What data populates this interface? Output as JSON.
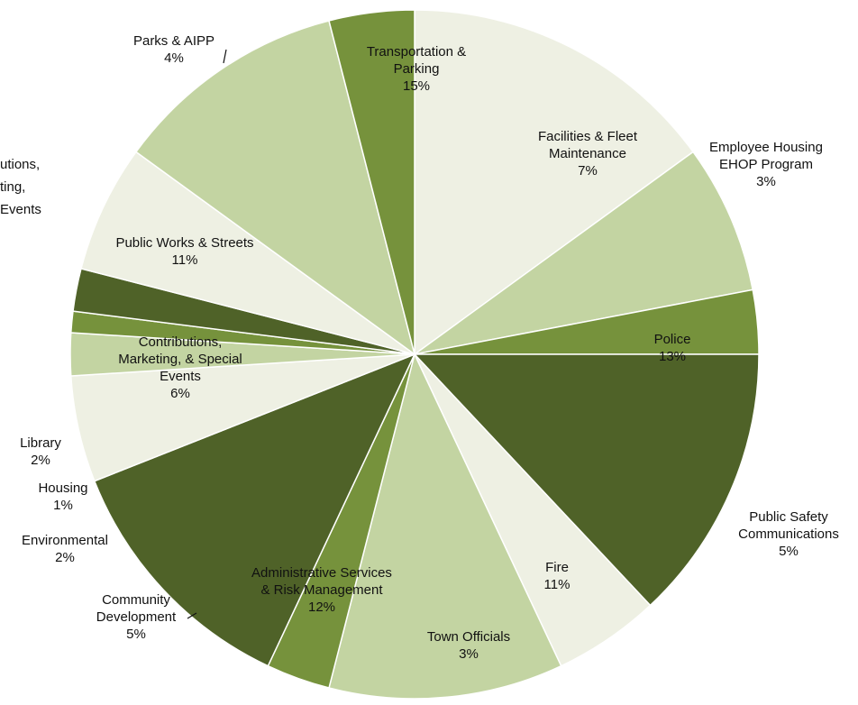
{
  "chart_data": {
    "type": "pie",
    "title": "",
    "start_at_top": true,
    "direction": "clockwise",
    "slices": [
      {
        "lines": [
          "Transportation &",
          "Parking",
          "15%"
        ],
        "value": 15,
        "color": "#eef0e3"
      },
      {
        "lines": [
          "Facilities & Fleet",
          "Maintenance",
          "7%"
        ],
        "value": 7,
        "color": "#c3d4a2"
      },
      {
        "lines": [
          "Employee Housing",
          "EHOP Program",
          "3%"
        ],
        "value": 3,
        "color": "#76923c"
      },
      {
        "lines": [
          "Police",
          "13%"
        ],
        "value": 13,
        "color": "#4f6228"
      },
      {
        "lines": [
          "Public Safety",
          "Communications",
          "5%"
        ],
        "value": 5,
        "color": "#eef0e3"
      },
      {
        "lines": [
          "Fire",
          "11%"
        ],
        "value": 11,
        "color": "#c3d4a2"
      },
      {
        "lines": [
          "Town Officials",
          "3%"
        ],
        "value": 3,
        "color": "#76923c"
      },
      {
        "lines": [
          "Administrative Services",
          "& Risk Management",
          "12%"
        ],
        "value": 12,
        "color": "#4f6228"
      },
      {
        "lines": [
          "Community",
          "Development",
          "5%"
        ],
        "value": 5,
        "color": "#eef0e3"
      },
      {
        "lines": [
          "Environmental",
          "2%"
        ],
        "value": 2,
        "color": "#c3d4a2"
      },
      {
        "lines": [
          "Housing",
          "1%"
        ],
        "value": 1,
        "color": "#76923c"
      },
      {
        "lines": [
          "Library",
          "2%"
        ],
        "value": 2,
        "color": "#4f6228"
      },
      {
        "lines": [
          "Contributions,",
          "Marketing, & Special",
          "Events",
          "6%"
        ],
        "value": 6,
        "color": "#eef0e3"
      },
      {
        "lines": [
          "Public Works & Streets",
          "11%"
        ],
        "value": 11,
        "color": "#c3d4a2"
      },
      {
        "lines": [
          "Parks & AIPP",
          "4%"
        ],
        "value": 4,
        "color": "#76923c"
      }
    ],
    "stray_text": [
      "utions,",
      "ting,",
      "Events"
    ]
  }
}
